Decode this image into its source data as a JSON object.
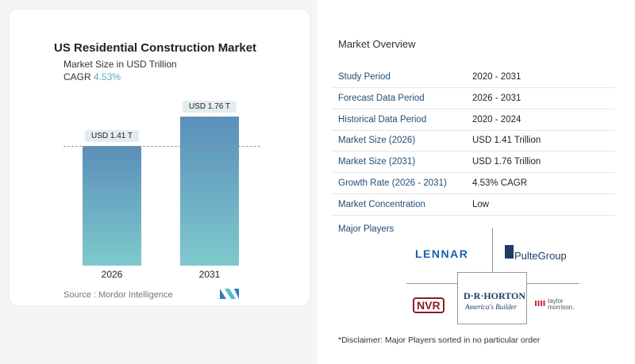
{
  "chart": {
    "title": "US Residential Construction Market",
    "subtitle": "Market Size in USD Trillion",
    "cagr_label": "CAGR",
    "cagr_value": "4.53%",
    "source": "Source :  Mordor Intelligence"
  },
  "chart_data": {
    "type": "bar",
    "title": "US Residential Construction Market",
    "categories": [
      "2026",
      "2031"
    ],
    "values": [
      1.41,
      1.76
    ],
    "data_labels": [
      "USD 1.41 T",
      "USD 1.76 T"
    ],
    "ylim": [
      0,
      1.8
    ],
    "colors": [
      "#5b8fba",
      "#7ec9cd"
    ]
  },
  "overview": {
    "title": "Market Overview",
    "rows": [
      {
        "k": "Study Period",
        "v": "2020 - 2031"
      },
      {
        "k": "Forecast Data Period",
        "v": "2026 - 2031"
      },
      {
        "k": "Historical Data Period",
        "v": "2020 - 2024"
      },
      {
        "k": "Market Size (2026)",
        "v": "USD 1.41 Trillion"
      },
      {
        "k": "Market Size (2031)",
        "v": "USD 1.76 Trillion"
      },
      {
        "k": "Growth Rate (2026 - 2031)",
        "v": "4.53% CAGR"
      },
      {
        "k": "Market Concentration",
        "v": "Low"
      }
    ],
    "major_players_label": "Major Players",
    "players": [
      "LENNAR",
      "PulteGroup",
      "NVR",
      "D·R·HORTON",
      "America's Builder",
      "taylor morrison."
    ],
    "disclaimer": "*Disclaimer: Major Players sorted in no particular order"
  }
}
